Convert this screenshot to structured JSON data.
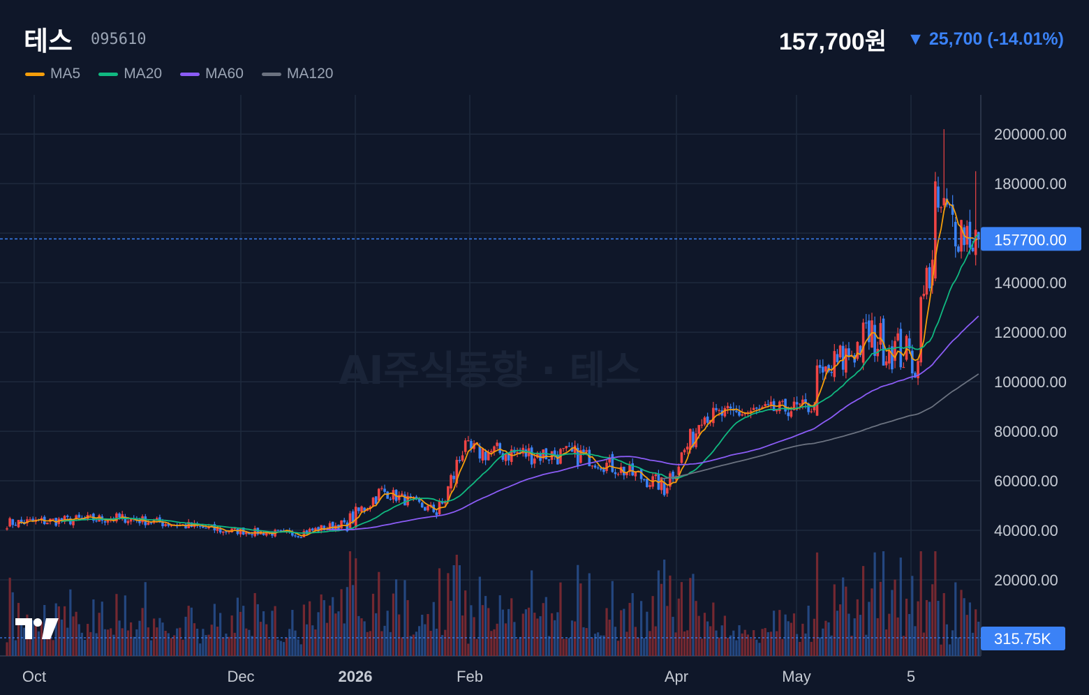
{
  "header": {
    "name": "테스",
    "code": "095610",
    "price": "157,700원",
    "change": "▼ 25,700 (-14.01%)"
  },
  "legend": [
    {
      "label": "MA5",
      "color": "#f59e0b"
    },
    {
      "label": "MA20",
      "color": "#10b981"
    },
    {
      "label": "MA60",
      "color": "#8b5cf6"
    },
    {
      "label": "MA120",
      "color": "#6b7280"
    }
  ],
  "watermark": "AI주식동향 · 테스",
  "chart_data": {
    "type": "candlestick",
    "title": "",
    "ylim": [
      0,
      215000
    ],
    "y_ticks": [
      "200000.00",
      "180000.00",
      "140000.00",
      "120000.00",
      "100000.00",
      "80000.00",
      "60000.00",
      "40000.00",
      "20000.00"
    ],
    "x_ticks": [
      "Oct",
      "Dec",
      "2026",
      "Feb",
      "Apr",
      "May",
      "5"
    ],
    "last_price_label": "157700.00",
    "last_price": 157700,
    "volume_label": "315.75K",
    "grid": true,
    "colors": {
      "up": "#ef4444",
      "down": "#3b82f6",
      "bg": "#0f1729",
      "grid": "#1f2a3d"
    },
    "segments": [
      {
        "from": 0,
        "to": 40,
        "start": 43000,
        "end": 45000,
        "noise": 2200
      },
      {
        "from": 40,
        "to": 75,
        "start": 45000,
        "end": 40000,
        "noise": 2000
      },
      {
        "from": 75,
        "to": 100,
        "start": 40000,
        "end": 38500,
        "noise": 1500
      },
      {
        "from": 100,
        "to": 118,
        "start": 38500,
        "end": 43000,
        "noise": 1800
      },
      {
        "from": 118,
        "to": 130,
        "start": 43000,
        "end": 56000,
        "noise": 3500
      },
      {
        "from": 130,
        "to": 150,
        "start": 56000,
        "end": 47000,
        "noise": 2500
      },
      {
        "from": 150,
        "to": 158,
        "start": 47000,
        "end": 72000,
        "noise": 6000
      },
      {
        "from": 158,
        "to": 200,
        "start": 72000,
        "end": 70000,
        "noise": 4500
      },
      {
        "from": 200,
        "to": 228,
        "start": 70000,
        "end": 58000,
        "noise": 3500
      },
      {
        "from": 228,
        "to": 240,
        "start": 58000,
        "end": 82000,
        "noise": 5000
      },
      {
        "from": 240,
        "to": 280,
        "start": 86000,
        "end": 90000,
        "noise": 3500
      },
      {
        "from": 280,
        "to": 300,
        "start": 98000,
        "end": 120000,
        "noise": 9000
      },
      {
        "from": 300,
        "to": 316,
        "start": 118000,
        "end": 108000,
        "noise": 9000
      },
      {
        "from": 316,
        "to": 322,
        "start": 120000,
        "end": 160000,
        "noise": 12000
      },
      {
        "from": 322,
        "to": 337,
        "start": 170000,
        "end": 157700,
        "noise": 12000
      }
    ],
    "ma_start": {
      "MA5": 4,
      "MA20": 19,
      "MA60": 111,
      "MA120": 227
    }
  }
}
